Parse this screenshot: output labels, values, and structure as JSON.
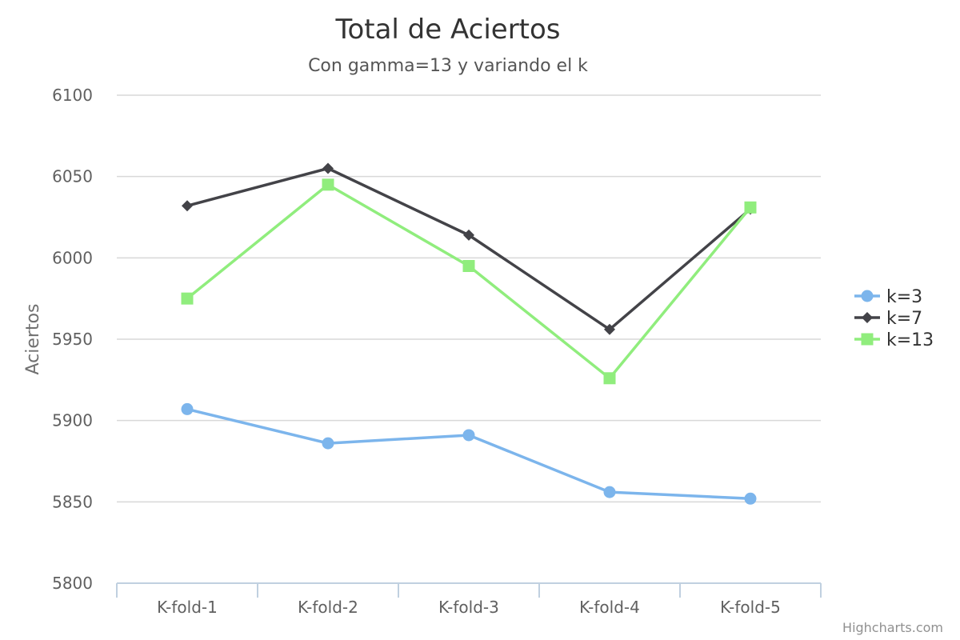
{
  "chart_data": {
    "type": "line",
    "title": "Total de Aciertos",
    "subtitle": "Con gamma=13 y variando el k",
    "xlabel": "",
    "ylabel": "Aciertos",
    "categories": [
      "K-fold-1",
      "K-fold-2",
      "K-fold-3",
      "K-fold-4",
      "K-fold-5"
    ],
    "ylim": [
      5800,
      6100
    ],
    "yticks": [
      "5800",
      "5850",
      "5900",
      "5950",
      "6000",
      "6050",
      "6100"
    ],
    "grid": true,
    "legend_position": "right",
    "series": [
      {
        "name": "k=3",
        "color": "#7cb5ec",
        "marker": "circle",
        "values": [
          5907,
          5886,
          5891,
          5856,
          5852
        ]
      },
      {
        "name": "k=7",
        "color": "#434348",
        "marker": "diamond",
        "values": [
          6032,
          6055,
          6014,
          5956,
          6030
        ]
      },
      {
        "name": "k=13",
        "color": "#90ed7d",
        "marker": "square",
        "values": [
          5975,
          6045,
          5995,
          5926,
          6031
        ]
      }
    ]
  },
  "credits": "Highcharts.com"
}
